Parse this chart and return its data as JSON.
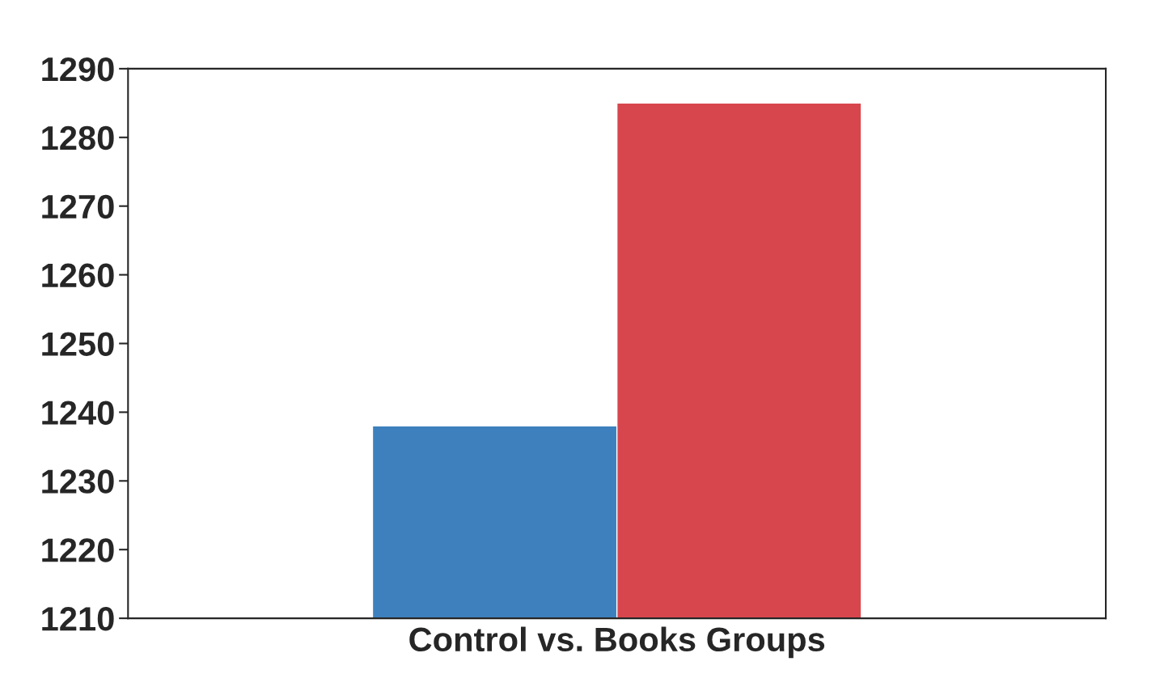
{
  "chart_data": {
    "type": "bar",
    "xlabel": "Control vs. Books Groups",
    "categories": [
      null,
      null
    ],
    "values": [
      1238,
      1285
    ],
    "colors": [
      "#3d80bd",
      "#d8464d"
    ],
    "ylim": [
      1210,
      1290
    ],
    "yticks": [
      1210,
      1220,
      1230,
      1240,
      1250,
      1260,
      1270,
      1280,
      1290
    ],
    "grid": false
  }
}
